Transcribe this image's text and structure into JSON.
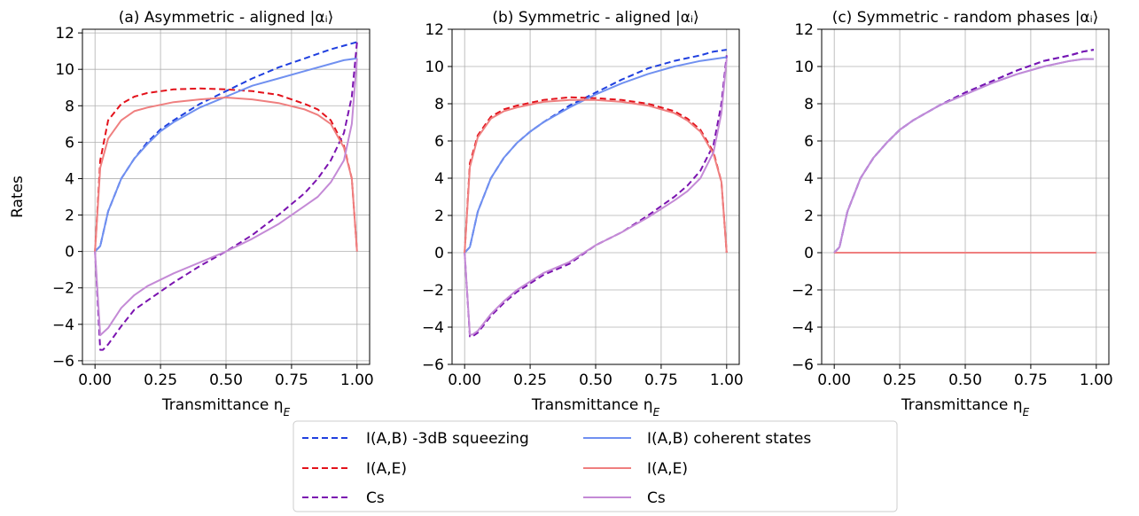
{
  "chart_data": [
    {
      "type": "line",
      "title": "(a) Asymmetric - aligned |αᵢ⟩",
      "xlabel": "Transmittance η_E",
      "ylabel": "Rates",
      "xlim": [
        0,
        1
      ],
      "ylim": [
        -6.2,
        12.2
      ],
      "xticks": [
        "0.00",
        "0.25",
        "0.50",
        "0.75",
        "1.00"
      ],
      "yticks": [
        "−6",
        "−4",
        "−2",
        "0",
        "2",
        "4",
        "6",
        "8",
        "10",
        "12"
      ],
      "grid": true,
      "series": [
        {
          "name": "I(A,B) -3dB squeezing",
          "style": "dashed",
          "color": "#1f3fdf",
          "x": [
            0,
            0.02,
            0.05,
            0.1,
            0.15,
            0.2,
            0.25,
            0.3,
            0.4,
            0.5,
            0.6,
            0.7,
            0.8,
            0.9,
            0.95,
            1.0
          ],
          "y": [
            0,
            0.3,
            2.2,
            4.0,
            5.1,
            6.0,
            6.7,
            7.2,
            8.1,
            8.8,
            9.5,
            10.1,
            10.6,
            11.1,
            11.3,
            11.5
          ]
        },
        {
          "name": "I(A,E)",
          "style": "dashed",
          "color": "#e3121b",
          "x": [
            0,
            0.02,
            0.05,
            0.1,
            0.15,
            0.2,
            0.3,
            0.4,
            0.5,
            0.6,
            0.7,
            0.8,
            0.85,
            0.9,
            0.95,
            0.98,
            1.0
          ],
          "y": [
            0,
            5.0,
            7.2,
            8.1,
            8.5,
            8.7,
            8.9,
            8.95,
            8.9,
            8.8,
            8.6,
            8.1,
            7.8,
            7.2,
            5.8,
            4.0,
            0
          ]
        },
        {
          "name": "Cs",
          "style": "dashed",
          "color": "#7b13b0",
          "x": [
            0,
            0.02,
            0.03,
            0.05,
            0.1,
            0.15,
            0.2,
            0.3,
            0.4,
            0.5,
            0.6,
            0.7,
            0.8,
            0.85,
            0.9,
            0.95,
            0.98,
            1.0
          ],
          "y": [
            0,
            -5.4,
            -5.4,
            -5.1,
            -4.1,
            -3.2,
            -2.7,
            -1.7,
            -0.8,
            0.0,
            0.9,
            2.0,
            3.2,
            4.0,
            5.0,
            6.5,
            8.5,
            11.5
          ]
        },
        {
          "name": "I(A,B) coherent states",
          "style": "solid",
          "color": "#7090f0",
          "x": [
            0,
            0.02,
            0.05,
            0.1,
            0.15,
            0.2,
            0.25,
            0.3,
            0.4,
            0.5,
            0.6,
            0.7,
            0.8,
            0.9,
            0.95,
            1.0
          ],
          "y": [
            0,
            0.3,
            2.2,
            4.0,
            5.1,
            5.9,
            6.6,
            7.1,
            7.9,
            8.5,
            9.1,
            9.5,
            9.9,
            10.3,
            10.5,
            10.6
          ]
        },
        {
          "name": "I(A,E)",
          "style": "solid",
          "color": "#ef7f7f",
          "x": [
            0,
            0.02,
            0.05,
            0.1,
            0.15,
            0.2,
            0.3,
            0.4,
            0.5,
            0.6,
            0.7,
            0.8,
            0.85,
            0.9,
            0.95,
            0.98,
            1.0
          ],
          "y": [
            0,
            4.6,
            6.2,
            7.2,
            7.7,
            7.9,
            8.2,
            8.35,
            8.45,
            8.35,
            8.15,
            7.8,
            7.5,
            7.0,
            5.7,
            4.0,
            0
          ]
        },
        {
          "name": "Cs",
          "style": "solid",
          "color": "#c48ad6",
          "x": [
            0,
            0.02,
            0.05,
            0.1,
            0.15,
            0.2,
            0.3,
            0.4,
            0.5,
            0.6,
            0.7,
            0.8,
            0.85,
            0.9,
            0.95,
            0.98,
            1.0
          ],
          "y": [
            0,
            -4.6,
            -4.2,
            -3.1,
            -2.4,
            -1.9,
            -1.2,
            -0.6,
            0.0,
            0.7,
            1.5,
            2.5,
            3.0,
            3.8,
            5.0,
            7.0,
            10.6
          ]
        }
      ]
    },
    {
      "type": "line",
      "title": "(b) Symmetric - aligned |αᵢ⟩",
      "xlabel": "Transmittance η_E",
      "ylabel": "",
      "xlim": [
        0,
        1
      ],
      "ylim": [
        -6,
        12
      ],
      "xticks": [
        "0.00",
        "0.25",
        "0.50",
        "0.75",
        "1.00"
      ],
      "yticks": [
        "−6",
        "−4",
        "−2",
        "0",
        "2",
        "4",
        "6",
        "8",
        "10",
        "12"
      ],
      "grid": true,
      "series": [
        {
          "name": "I(A,B) -3dB squeezing",
          "style": "dashed",
          "color": "#1f3fdf",
          "x": [
            0,
            0.02,
            0.05,
            0.1,
            0.15,
            0.2,
            0.25,
            0.3,
            0.4,
            0.5,
            0.6,
            0.7,
            0.8,
            0.9,
            0.95,
            1.0
          ],
          "y": [
            0,
            0.3,
            2.2,
            4.0,
            5.1,
            5.9,
            6.5,
            7.0,
            7.9,
            8.6,
            9.3,
            9.9,
            10.3,
            10.6,
            10.8,
            10.9
          ]
        },
        {
          "name": "I(A,E)",
          "style": "dashed",
          "color": "#e3121b",
          "x": [
            0,
            0.02,
            0.05,
            0.1,
            0.15,
            0.2,
            0.3,
            0.4,
            0.5,
            0.6,
            0.7,
            0.8,
            0.85,
            0.9,
            0.95,
            0.98,
            1.0
          ],
          "y": [
            0,
            4.8,
            6.3,
            7.3,
            7.7,
            7.9,
            8.2,
            8.35,
            8.3,
            8.2,
            8.0,
            7.6,
            7.2,
            6.6,
            5.4,
            3.8,
            0
          ]
        },
        {
          "name": "Cs",
          "style": "dashed",
          "color": "#7b13b0",
          "x": [
            0,
            0.02,
            0.03,
            0.05,
            0.1,
            0.15,
            0.2,
            0.3,
            0.4,
            0.5,
            0.6,
            0.7,
            0.8,
            0.85,
            0.9,
            0.95,
            0.98,
            1.0
          ],
          "y": [
            0,
            -4.5,
            -4.5,
            -4.3,
            -3.4,
            -2.7,
            -2.1,
            -1.2,
            -0.6,
            0.4,
            1.1,
            2.0,
            3.0,
            3.6,
            4.4,
            5.8,
            8.0,
            10.6
          ]
        },
        {
          "name": "I(A,B) coherent states",
          "style": "solid",
          "color": "#7090f0",
          "x": [
            0,
            0.02,
            0.05,
            0.1,
            0.15,
            0.2,
            0.25,
            0.3,
            0.4,
            0.5,
            0.6,
            0.7,
            0.8,
            0.9,
            0.95,
            1.0
          ],
          "y": [
            0,
            0.3,
            2.2,
            4.0,
            5.1,
            5.9,
            6.5,
            7.0,
            7.8,
            8.5,
            9.1,
            9.6,
            10.0,
            10.3,
            10.4,
            10.5
          ]
        },
        {
          "name": "I(A,E)",
          "style": "solid",
          "color": "#ef7f7f",
          "x": [
            0,
            0.02,
            0.05,
            0.1,
            0.15,
            0.2,
            0.3,
            0.4,
            0.5,
            0.6,
            0.7,
            0.8,
            0.85,
            0.9,
            0.95,
            0.98,
            1.0
          ],
          "y": [
            0,
            4.6,
            6.2,
            7.2,
            7.6,
            7.8,
            8.1,
            8.2,
            8.2,
            8.1,
            7.9,
            7.5,
            7.1,
            6.5,
            5.3,
            3.8,
            0
          ]
        },
        {
          "name": "Cs",
          "style": "solid",
          "color": "#c48ad6",
          "x": [
            0,
            0.02,
            0.03,
            0.05,
            0.1,
            0.15,
            0.2,
            0.3,
            0.4,
            0.5,
            0.6,
            0.7,
            0.8,
            0.85,
            0.9,
            0.95,
            0.98,
            1.0
          ],
          "y": [
            0,
            -4.4,
            -4.4,
            -4.2,
            -3.3,
            -2.6,
            -2.0,
            -1.1,
            -0.5,
            0.4,
            1.1,
            1.9,
            2.8,
            3.3,
            4.0,
            5.4,
            7.5,
            10.4
          ]
        }
      ]
    },
    {
      "type": "line",
      "title": "(c) Symmetric - random phases |αᵢ⟩",
      "xlabel": "Transmittance η_E",
      "ylabel": "",
      "xlim": [
        0,
        1
      ],
      "ylim": [
        -6,
        12
      ],
      "xticks": [
        "0.00",
        "0.25",
        "0.50",
        "0.75",
        "1.00"
      ],
      "yticks": [
        "−6",
        "−4",
        "−2",
        "0",
        "2",
        "4",
        "6",
        "8",
        "10",
        "12"
      ],
      "grid": true,
      "series": [
        {
          "name": "I(A,B) -3dB squeezing",
          "style": "dashed",
          "color": "#1f3fdf",
          "x": [
            0,
            0.02,
            0.05,
            0.1,
            0.15,
            0.2,
            0.25,
            0.3,
            0.4,
            0.5,
            0.6,
            0.7,
            0.8,
            0.9,
            0.95,
            0.99
          ],
          "y": [
            0,
            0.3,
            2.2,
            4.0,
            5.1,
            5.9,
            6.6,
            7.1,
            7.9,
            8.6,
            9.2,
            9.8,
            10.3,
            10.6,
            10.8,
            10.9
          ]
        },
        {
          "name": "I(A,E)",
          "style": "dashed",
          "color": "#e3121b",
          "x": [
            0,
            1.0
          ],
          "y": [
            0,
            0
          ]
        },
        {
          "name": "Cs",
          "style": "dashed",
          "color": "#7b13b0",
          "x": [
            0,
            0.02,
            0.05,
            0.1,
            0.15,
            0.2,
            0.25,
            0.3,
            0.4,
            0.5,
            0.6,
            0.7,
            0.8,
            0.9,
            0.95,
            0.99
          ],
          "y": [
            0,
            0.3,
            2.2,
            4.0,
            5.1,
            5.9,
            6.6,
            7.1,
            7.9,
            8.6,
            9.2,
            9.8,
            10.3,
            10.6,
            10.8,
            10.9
          ]
        },
        {
          "name": "I(A,B) coherent states",
          "style": "solid",
          "color": "#7090f0",
          "x": [
            0,
            0.02,
            0.05,
            0.1,
            0.15,
            0.2,
            0.25,
            0.3,
            0.4,
            0.5,
            0.6,
            0.7,
            0.8,
            0.9,
            0.95,
            0.99
          ],
          "y": [
            0,
            0.3,
            2.2,
            4.0,
            5.1,
            5.9,
            6.6,
            7.1,
            7.9,
            8.5,
            9.1,
            9.6,
            10.0,
            10.3,
            10.4,
            10.4
          ]
        },
        {
          "name": "I(A,E)",
          "style": "solid",
          "color": "#ef7f7f",
          "x": [
            0,
            1.0
          ],
          "y": [
            0,
            0
          ]
        },
        {
          "name": "Cs",
          "style": "solid",
          "color": "#c48ad6",
          "x": [
            0,
            0.02,
            0.05,
            0.1,
            0.15,
            0.2,
            0.25,
            0.3,
            0.4,
            0.5,
            0.6,
            0.7,
            0.8,
            0.9,
            0.95,
            0.99
          ],
          "y": [
            0,
            0.3,
            2.2,
            4.0,
            5.1,
            5.9,
            6.6,
            7.1,
            7.9,
            8.5,
            9.1,
            9.6,
            10.0,
            10.3,
            10.4,
            10.4
          ]
        }
      ]
    }
  ],
  "legend": {
    "placement": "bottom-center",
    "entries": [
      {
        "label": "I(A,B) -3dB squeezing",
        "style": "dashed",
        "color": "#1f3fdf"
      },
      {
        "label": "I(A,E)",
        "style": "dashed",
        "color": "#e3121b"
      },
      {
        "label": "Cs",
        "style": "dashed",
        "color": "#7b13b0"
      },
      {
        "label": "I(A,B) coherent states",
        "style": "solid",
        "color": "#7090f0"
      },
      {
        "label": "I(A,E)",
        "style": "solid",
        "color": "#ef7f7f"
      },
      {
        "label": "Cs",
        "style": "solid",
        "color": "#c48ad6"
      }
    ]
  }
}
